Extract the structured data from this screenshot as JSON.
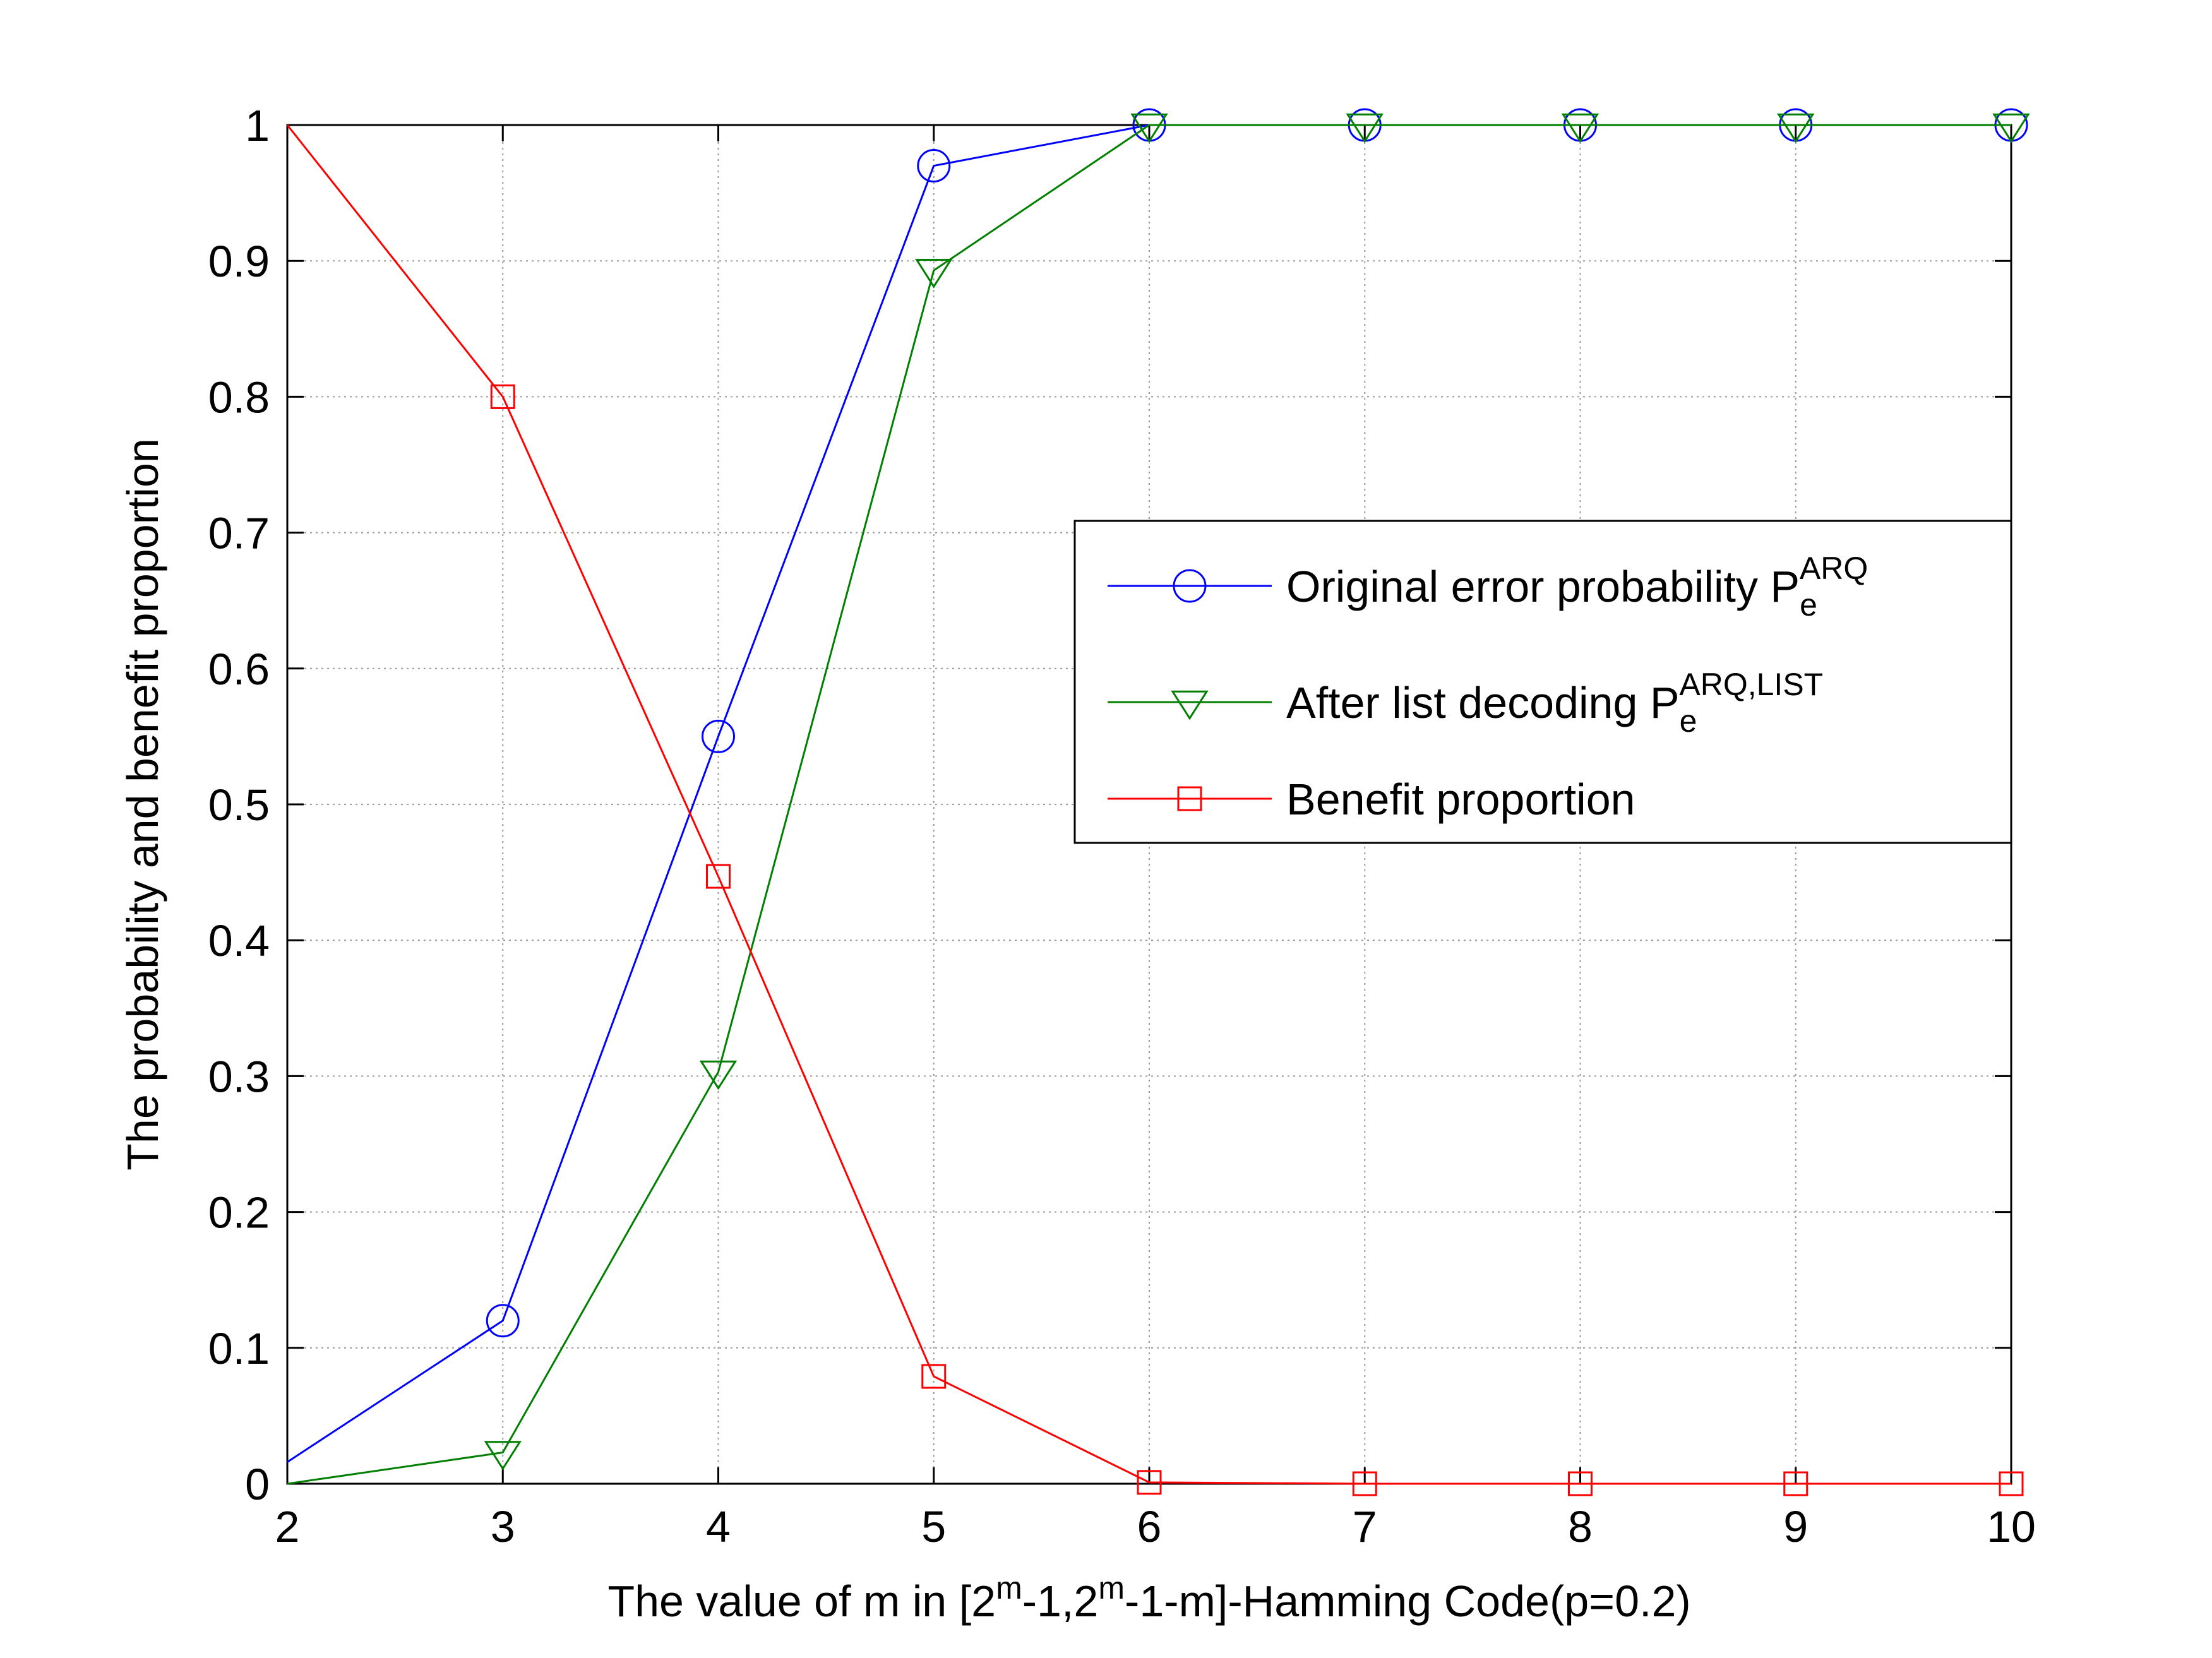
{
  "chart_data": {
    "type": "line",
    "title": "",
    "xlabel": {
      "parts": [
        {
          "text": "The value of m in [2",
          "sup": false
        },
        {
          "text": "m",
          "sup": true
        },
        {
          "text": "-1,2",
          "sup": false
        },
        {
          "text": "m",
          "sup": true
        },
        {
          "text": "-1-m]-Hamming Code(p=0.2)",
          "sup": false
        }
      ]
    },
    "ylabel": "The probability and benefit proportion",
    "xlim": [
      2,
      10
    ],
    "ylim": [
      0,
      1
    ],
    "xticks": [
      2,
      3,
      4,
      5,
      6,
      7,
      8,
      9,
      10
    ],
    "yticks": [
      0,
      0.1,
      0.2,
      0.3,
      0.4,
      0.5,
      0.6,
      0.7,
      0.8,
      0.9,
      1
    ],
    "ytick_labels": [
      "0",
      "0.1",
      "0.2",
      "0.3",
      "0.4",
      "0.5",
      "0.6",
      "0.7",
      "0.8",
      "0.9",
      "1"
    ],
    "grid": true,
    "legend_position": "center-right",
    "x": [
      2,
      3,
      4,
      5,
      6,
      7,
      8,
      9,
      10
    ],
    "series": [
      {
        "name": "Original error probability P",
        "name_sub": "e",
        "name_sup": "ARQ",
        "color": "#0000ff",
        "marker": "circle",
        "values": [
          0.016,
          0.12,
          0.55,
          0.97,
          1.0,
          1.0,
          1.0,
          1.0,
          1.0
        ],
        "marker_from_index": 1
      },
      {
        "name": "After list decoding P",
        "name_sub": "e",
        "name_sup": "ARQ,LIST",
        "color": "#007f00",
        "marker": "triangle-down",
        "values": [
          0.0,
          0.023,
          0.303,
          0.893,
          1.0,
          1.0,
          1.0,
          1.0,
          1.0
        ],
        "marker_from_index": 1
      },
      {
        "name": "Benefit proportion",
        "name_sub": "",
        "name_sup": "",
        "color": "#ff0000",
        "marker": "square",
        "values": [
          1.0,
          0.8,
          0.447,
          0.079,
          0.001,
          0.0,
          0.0,
          0.0,
          0.0
        ],
        "marker_from_index": 1
      }
    ]
  }
}
